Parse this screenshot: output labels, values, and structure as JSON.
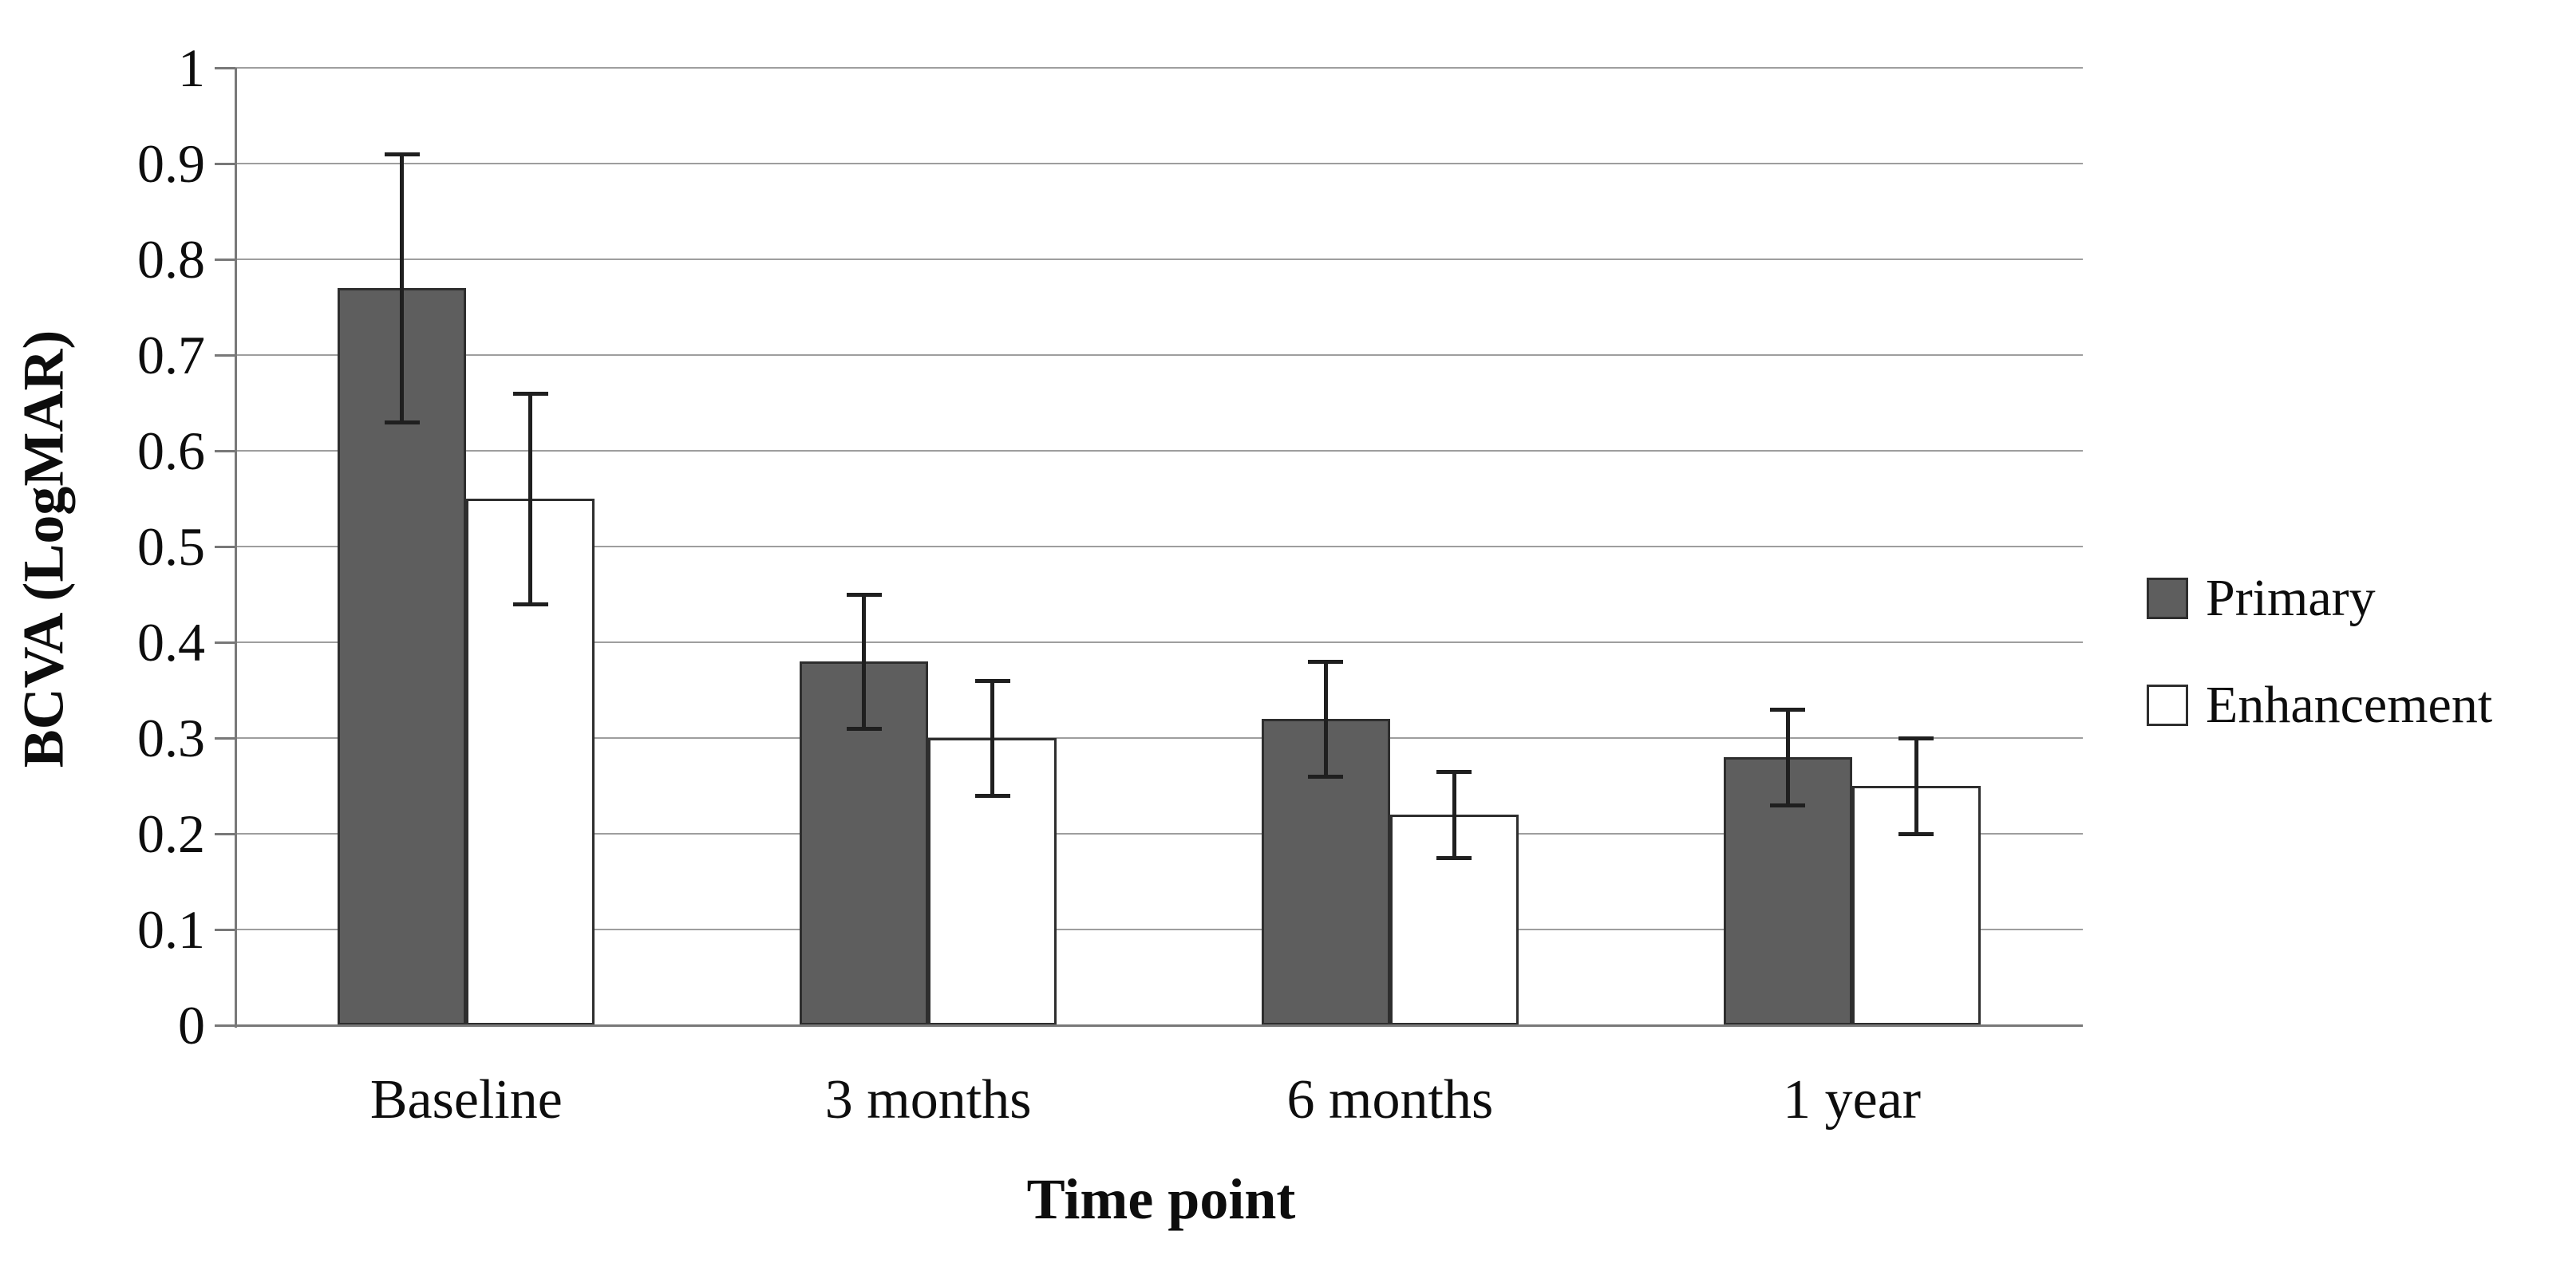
{
  "chart_data": {
    "type": "bar",
    "title": "",
    "xlabel": "Time point",
    "ylabel": "BCVA (LogMAR)",
    "categories": [
      "Baseline",
      "3 months",
      "6 months",
      "1 year"
    ],
    "series": [
      {
        "name": "Primary",
        "fill": "#5e5e5e",
        "border": "#2e2e2e",
        "values": [
          0.77,
          0.38,
          0.32,
          0.28
        ],
        "error_low": [
          0.63,
          0.31,
          0.26,
          0.23
        ],
        "error_high": [
          0.91,
          0.45,
          0.38,
          0.33
        ]
      },
      {
        "name": "Enhancement",
        "fill": "#ffffff",
        "border": "#2e2e2e",
        "values": [
          0.55,
          0.3,
          0.22,
          0.25
        ],
        "error_low": [
          0.44,
          0.24,
          0.175,
          0.2
        ],
        "error_high": [
          0.66,
          0.36,
          0.265,
          0.3
        ]
      }
    ],
    "ylim": [
      0,
      1
    ],
    "ytick_step": 0.1,
    "yticks": [
      "1",
      "0.9",
      "0.8",
      "0.7",
      "0.6",
      "0.5",
      "0.4",
      "0.3",
      "0.2",
      "0.1",
      "0"
    ],
    "grid": true,
    "legend_position": "right"
  },
  "styles": {
    "background": "#ffffff",
    "gridline_color": "#9e9e9e",
    "axis_color": "#787878",
    "tick_color": "#787878",
    "error_bar_color": "#1f1f1f",
    "text_color": "#0d0d0d"
  }
}
